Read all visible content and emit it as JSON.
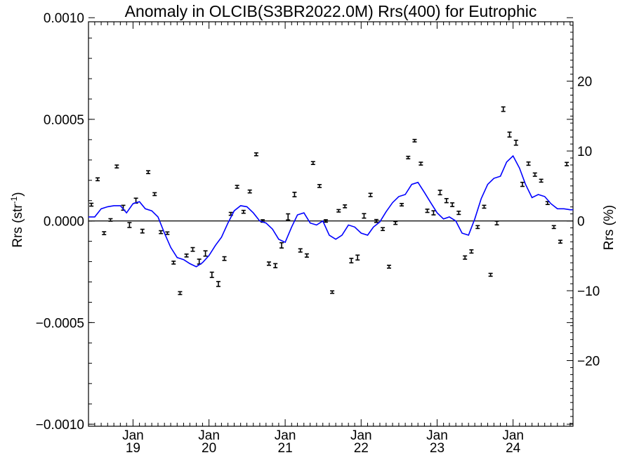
{
  "chart_data": {
    "type": "scatter",
    "title": "Anomaly in OLCIB(S3BR2022.0M) Rrs(400) for Eutrophic",
    "ylabel": "Rrs (str",
    "ylabel_sup": "-1",
    "ylabel_close": ")",
    "y2label": "Rrs (%)",
    "ylim": [
      -0.00101,
      0.00098
    ],
    "y2lim": [
      -29.4,
      28.5
    ],
    "yticks": [
      {
        "value": 0.001,
        "label": "0.0010"
      },
      {
        "value": 0.0005,
        "label": "0.0005"
      },
      {
        "value": 0.0,
        "label": "0.0000"
      },
      {
        "value": -0.0005,
        "label": "−0.0005"
      },
      {
        "value": -0.001,
        "label": "−0.0010"
      }
    ],
    "y2ticks": [
      {
        "value": 20,
        "label": "20"
      },
      {
        "value": 10,
        "label": "10"
      },
      {
        "value": 0,
        "label": "0"
      },
      {
        "value": -10,
        "label": "−10"
      },
      {
        "value": -20,
        "label": "−20"
      }
    ],
    "xlim": [
      "2018-06-01",
      "2024-10-15"
    ],
    "xticks": [
      {
        "date": "2019-01-01",
        "month": "Jan",
        "year": "19"
      },
      {
        "date": "2020-01-01",
        "month": "Jan",
        "year": "20"
      },
      {
        "date": "2021-01-01",
        "month": "Jan",
        "year": "21"
      },
      {
        "date": "2022-01-01",
        "month": "Jan",
        "year": "22"
      },
      {
        "date": "2023-01-01",
        "month": "Jan",
        "year": "23"
      },
      {
        "date": "2024-01-01",
        "month": "Jan",
        "year": "24"
      }
    ],
    "grid": false,
    "zero_line": 0,
    "colors": {
      "points": "#000000",
      "line": "#0000ff",
      "axis": "#000000"
    },
    "points": [
      {
        "x": "2018-06-15",
        "y": 8e-05,
        "err": 7e-06
      },
      {
        "x": "2018-07-15",
        "y": 0.000205,
        "err": 7e-06
      },
      {
        "x": "2018-08-15",
        "y": -6e-05,
        "err": 7e-06
      },
      {
        "x": "2018-09-15",
        "y": 5e-06,
        "err": 6e-06
      },
      {
        "x": "2018-10-15",
        "y": 0.000268,
        "err": 7e-06
      },
      {
        "x": "2018-11-15",
        "y": 6.5e-05,
        "err": 1.2e-05
      },
      {
        "x": "2018-12-15",
        "y": -2e-05,
        "err": 1.2e-05
      },
      {
        "x": "2019-01-15",
        "y": 0.0001,
        "err": 1.2e-05
      },
      {
        "x": "2019-02-15",
        "y": -5e-05,
        "err": 9e-06
      },
      {
        "x": "2019-03-15",
        "y": 0.00024,
        "err": 7e-06
      },
      {
        "x": "2019-04-15",
        "y": 0.000132,
        "err": 7e-06
      },
      {
        "x": "2019-05-15",
        "y": -5.5e-05,
        "err": 7e-06
      },
      {
        "x": "2019-06-15",
        "y": -6e-05,
        "err": 6e-06
      },
      {
        "x": "2019-07-15",
        "y": -0.000205,
        "err": 7e-06
      },
      {
        "x": "2019-08-15",
        "y": -0.000355,
        "err": 7e-06
      },
      {
        "x": "2019-09-15",
        "y": -0.00017,
        "err": 7e-06
      },
      {
        "x": "2019-10-15",
        "y": -0.00014,
        "err": 9e-06
      },
      {
        "x": "2019-11-15",
        "y": -0.0002,
        "err": 1.2e-05
      },
      {
        "x": "2019-12-15",
        "y": -0.00016,
        "err": 1.3e-05
      },
      {
        "x": "2020-01-15",
        "y": -0.000265,
        "err": 1.3e-05
      },
      {
        "x": "2020-02-15",
        "y": -0.00031,
        "err": 1.2e-05
      },
      {
        "x": "2020-03-15",
        "y": -0.000185,
        "err": 9e-06
      },
      {
        "x": "2020-04-15",
        "y": 3.5e-05,
        "err": 7e-06
      },
      {
        "x": "2020-05-15",
        "y": 0.000168,
        "err": 7e-06
      },
      {
        "x": "2020-06-15",
        "y": 4.5e-05,
        "err": 7e-06
      },
      {
        "x": "2020-07-15",
        "y": 0.000145,
        "err": 7e-06
      },
      {
        "x": "2020-08-15",
        "y": 0.000328,
        "err": 7e-06
      },
      {
        "x": "2020-09-15",
        "y": 0.0,
        "err": 6e-06
      },
      {
        "x": "2020-10-15",
        "y": -0.00021,
        "err": 8e-06
      },
      {
        "x": "2020-11-15",
        "y": -0.00022,
        "err": 1e-05
      },
      {
        "x": "2020-12-15",
        "y": -0.00012,
        "err": 1.3e-05
      },
      {
        "x": "2021-01-15",
        "y": 2e-05,
        "err": 1.5e-05
      },
      {
        "x": "2021-02-15",
        "y": 0.00013,
        "err": 1.1e-05
      },
      {
        "x": "2021-03-15",
        "y": -0.000145,
        "err": 8e-06
      },
      {
        "x": "2021-04-15",
        "y": -0.00017,
        "err": 8e-06
      },
      {
        "x": "2021-05-15",
        "y": 0.000285,
        "err": 7e-06
      },
      {
        "x": "2021-06-15",
        "y": 0.000172,
        "err": 7e-06
      },
      {
        "x": "2021-07-15",
        "y": 0.0,
        "err": 6e-06
      },
      {
        "x": "2021-08-15",
        "y": -0.00035,
        "err": 6e-06
      },
      {
        "x": "2021-09-15",
        "y": 5e-05,
        "err": 6e-06
      },
      {
        "x": "2021-10-15",
        "y": 7.2e-05,
        "err": 7e-06
      },
      {
        "x": "2021-11-15",
        "y": -0.000195,
        "err": 1.1e-05
      },
      {
        "x": "2021-12-15",
        "y": -0.00018,
        "err": 1.2e-05
      },
      {
        "x": "2022-01-15",
        "y": 2.5e-05,
        "err": 1.1e-05
      },
      {
        "x": "2022-02-15",
        "y": 0.000128,
        "err": 8e-06
      },
      {
        "x": "2022-03-15",
        "y": 0.0,
        "err": 7e-06
      },
      {
        "x": "2022-04-15",
        "y": -4e-05,
        "err": 7e-06
      },
      {
        "x": "2022-05-15",
        "y": -0.000225,
        "err": 7e-06
      },
      {
        "x": "2022-06-15",
        "y": -1e-05,
        "err": 7e-06
      },
      {
        "x": "2022-07-15",
        "y": 8e-05,
        "err": 6e-06
      },
      {
        "x": "2022-08-15",
        "y": 0.000312,
        "err": 6e-06
      },
      {
        "x": "2022-09-15",
        "y": 0.000395,
        "err": 6e-06
      },
      {
        "x": "2022-10-15",
        "y": 0.000282,
        "err": 7e-06
      },
      {
        "x": "2022-11-15",
        "y": 5e-05,
        "err": 8e-06
      },
      {
        "x": "2022-12-15",
        "y": 4e-05,
        "err": 1e-05
      },
      {
        "x": "2023-01-15",
        "y": 0.00014,
        "err": 1.1e-05
      },
      {
        "x": "2023-02-15",
        "y": 0.0001,
        "err": 1e-05
      },
      {
        "x": "2023-03-15",
        "y": 8e-05,
        "err": 9e-06
      },
      {
        "x": "2023-04-15",
        "y": 4e-05,
        "err": 8e-06
      },
      {
        "x": "2023-05-15",
        "y": -0.00018,
        "err": 8e-06
      },
      {
        "x": "2023-06-15",
        "y": -0.00015,
        "err": 8e-06
      },
      {
        "x": "2023-07-15",
        "y": -3e-05,
        "err": 7e-06
      },
      {
        "x": "2023-08-15",
        "y": 7e-05,
        "err": 7e-06
      },
      {
        "x": "2023-09-15",
        "y": -0.000265,
        "err": 7e-06
      },
      {
        "x": "2023-10-15",
        "y": -1e-05,
        "err": 9e-06
      },
      {
        "x": "2023-11-15",
        "y": 0.00055,
        "err": 1.1e-05
      },
      {
        "x": "2023-12-15",
        "y": 0.000425,
        "err": 1.2e-05
      },
      {
        "x": "2024-01-15",
        "y": 0.000385,
        "err": 1.2e-05
      },
      {
        "x": "2024-02-15",
        "y": 0.00018,
        "err": 1e-05
      },
      {
        "x": "2024-03-15",
        "y": 0.000282,
        "err": 8e-06
      },
      {
        "x": "2024-04-15",
        "y": 0.000228,
        "err": 8e-06
      },
      {
        "x": "2024-05-15",
        "y": 0.000198,
        "err": 7e-06
      },
      {
        "x": "2024-06-15",
        "y": 8.8e-05,
        "err": 7e-06
      },
      {
        "x": "2024-07-15",
        "y": -3e-05,
        "err": 7e-06
      },
      {
        "x": "2024-08-15",
        "y": -0.000102,
        "err": 7e-06
      },
      {
        "x": "2024-09-15",
        "y": 0.00028,
        "err": 8e-06
      }
    ],
    "line": {
      "x": [
        "2018-06-01",
        "2018-07-01",
        "2018-08-01",
        "2018-09-01",
        "2018-10-01",
        "2018-11-01",
        "2018-12-01",
        "2019-01-01",
        "2019-02-01",
        "2019-03-01",
        "2019-04-01",
        "2019-05-01",
        "2019-06-01",
        "2019-07-01",
        "2019-08-01",
        "2019-09-01",
        "2019-10-01",
        "2019-11-01",
        "2019-12-01",
        "2020-01-01",
        "2020-02-01",
        "2020-03-01",
        "2020-04-01",
        "2020-05-01",
        "2020-06-01",
        "2020-07-01",
        "2020-08-01",
        "2020-09-01",
        "2020-10-01",
        "2020-11-01",
        "2020-12-01",
        "2021-01-01",
        "2021-02-01",
        "2021-03-01",
        "2021-04-01",
        "2021-05-01",
        "2021-06-01",
        "2021-07-01",
        "2021-08-01",
        "2021-09-01",
        "2021-10-01",
        "2021-11-01",
        "2021-12-01",
        "2022-01-01",
        "2022-02-01",
        "2022-03-01",
        "2022-04-01",
        "2022-05-01",
        "2022-06-01",
        "2022-07-01",
        "2022-08-01",
        "2022-09-01",
        "2022-10-01",
        "2022-11-01",
        "2022-12-01",
        "2023-01-01",
        "2023-02-01",
        "2023-03-01",
        "2023-04-01",
        "2023-05-01",
        "2023-06-01",
        "2023-07-01",
        "2023-08-01",
        "2023-09-01",
        "2023-10-01",
        "2023-11-01",
        "2023-12-01",
        "2024-01-01",
        "2024-02-01",
        "2024-03-01",
        "2024-04-01",
        "2024-05-01",
        "2024-06-01",
        "2024-07-01",
        "2024-08-01",
        "2024-09-01",
        "2024-10-01",
        "2024-10-15"
      ],
      "y": [
        2e-05,
        2e-05,
        6e-05,
        7e-05,
        7.5e-05,
        7.5e-05,
        4e-05,
        8.5e-05,
        9.5e-05,
        6e-05,
        5e-05,
        2e-05,
        -6e-05,
        -0.00013,
        -0.00018,
        -0.00019,
        -0.00021,
        -0.000225,
        -0.000205,
        -0.00017,
        -0.00012,
        -8e-05,
        -1e-05,
        5e-05,
        7.5e-05,
        7e-05,
        4e-05,
        0.0,
        -1e-05,
        -4e-05,
        -9e-05,
        -0.000105,
        -3e-05,
        3e-05,
        4e-05,
        -1e-05,
        -2e-05,
        0.0,
        -7e-05,
        -9e-05,
        -7e-05,
        -2e-05,
        -3e-05,
        -6e-05,
        -7e-05,
        -3e-05,
        -5e-06,
        4.5e-05,
        9e-05,
        0.00012,
        0.00013,
        0.00018,
        0.00019,
        0.00014,
        9e-05,
        4e-05,
        1e-05,
        2e-05,
        0.0,
        -6e-05,
        -7e-05,
        1e-05,
        0.00011,
        0.00018,
        0.00021,
        0.00022,
        0.00029,
        0.00032,
        0.00026,
        0.00018,
        0.000115,
        0.00013,
        0.00012,
        8.5e-05,
        6e-05,
        6e-05,
        5.5e-05,
        5.5e-05
      ]
    }
  }
}
